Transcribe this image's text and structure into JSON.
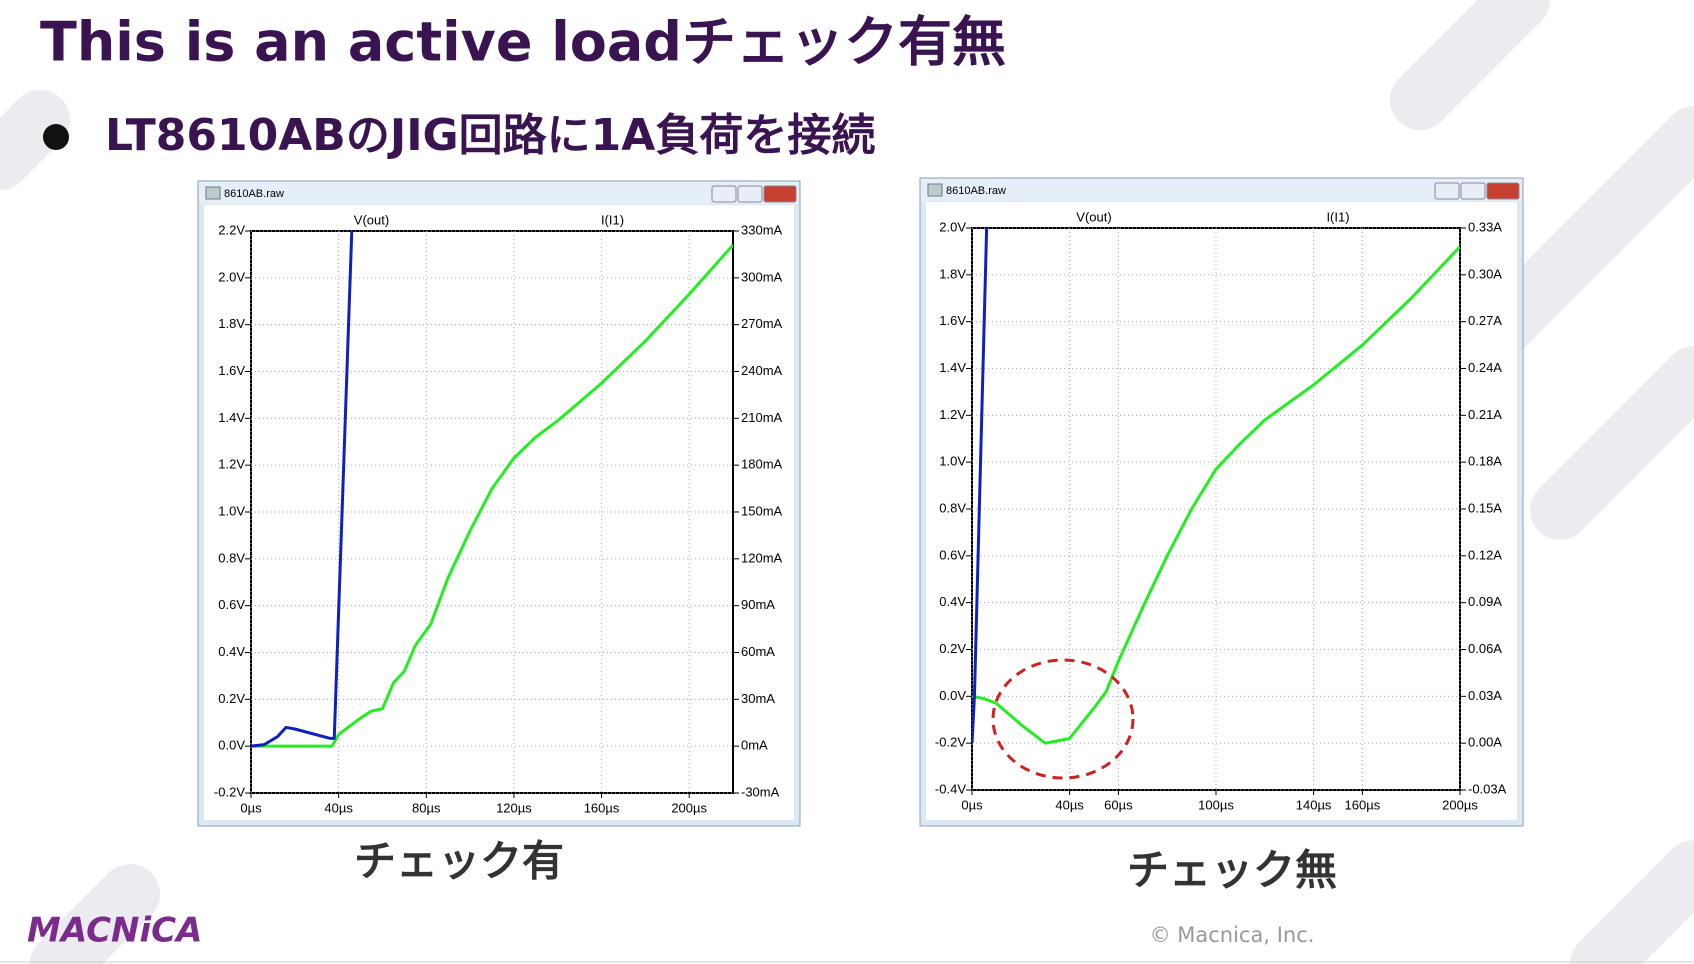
{
  "slide": {
    "title": "This is an active loadチェック有無",
    "bullet": "LT8610ABのJIG回路に1A負荷を接続",
    "logo": "MACNiCA",
    "copyright": "© Macnica, Inc."
  },
  "chart_data": [
    {
      "type": "line",
      "window_title": "8610AB.raw",
      "caption": "チェック有",
      "xlim": [
        0,
        220
      ],
      "ylim": [
        -0.2,
        2.2
      ],
      "y2lim": [
        -30,
        330
      ],
      "xticks": [
        {
          "value": 0,
          "label": "0µs"
        },
        {
          "value": 40,
          "label": "40µs"
        },
        {
          "value": 80,
          "label": "80µs"
        },
        {
          "value": 120,
          "label": "120µs"
        },
        {
          "value": 160,
          "label": "160µs"
        },
        {
          "value": 200,
          "label": "200µs"
        }
      ],
      "yticks": [
        {
          "value": -0.2,
          "label": "-0.2V"
        },
        {
          "value": 0,
          "label": "0.0V"
        },
        {
          "value": 0.2,
          "label": "0.2V"
        },
        {
          "value": 0.4,
          "label": "0.4V"
        },
        {
          "value": 0.6,
          "label": "0.6V"
        },
        {
          "value": 0.8,
          "label": "0.8V"
        },
        {
          "value": 1.0,
          "label": "1.0V"
        },
        {
          "value": 1.2,
          "label": "1.2V"
        },
        {
          "value": 1.4,
          "label": "1.4V"
        },
        {
          "value": 1.6,
          "label": "1.6V"
        },
        {
          "value": 1.8,
          "label": "1.8V"
        },
        {
          "value": 2.0,
          "label": "2.0V"
        },
        {
          "value": 2.2,
          "label": "2.2V"
        }
      ],
      "y2ticks": [
        {
          "value": -30,
          "label": "-30mA"
        },
        {
          "value": 0,
          "label": "0mA"
        },
        {
          "value": 30,
          "label": "30mA"
        },
        {
          "value": 60,
          "label": "60mA"
        },
        {
          "value": 90,
          "label": "90mA"
        },
        {
          "value": 120,
          "label": "120mA"
        },
        {
          "value": 150,
          "label": "150mA"
        },
        {
          "value": 180,
          "label": "180mA"
        },
        {
          "value": 210,
          "label": "210mA"
        },
        {
          "value": 240,
          "label": "240mA"
        },
        {
          "value": 270,
          "label": "270mA"
        },
        {
          "value": 300,
          "label": "300mA"
        },
        {
          "value": 330,
          "label": "330mA"
        }
      ],
      "grid": true,
      "series": [
        {
          "name": "V(out)",
          "color": "#22ee22",
          "x": [
            0,
            37,
            40,
            50,
            55,
            60,
            65,
            70,
            75,
            82,
            90,
            100,
            110,
            120,
            130,
            140,
            160,
            180,
            200,
            220
          ],
          "values": [
            0,
            0,
            0.05,
            0.12,
            0.15,
            0.16,
            0.27,
            0.32,
            0.43,
            0.52,
            0.72,
            0.92,
            1.1,
            1.23,
            1.32,
            1.39,
            1.55,
            1.73,
            1.93,
            2.14
          ]
        },
        {
          "name": "I(I1)",
          "color": "#1020c0",
          "axis": "y2",
          "x": [
            0,
            6,
            12,
            16,
            20,
            36,
            38,
            46
          ],
          "values": [
            0,
            1,
            6,
            12,
            11,
            5,
            5,
            330
          ]
        }
      ]
    },
    {
      "type": "line",
      "window_title": "8610AB.raw",
      "caption": "チェック無",
      "xlim": [
        0,
        200
      ],
      "ylim": [
        -0.4,
        2.0
      ],
      "y2lim": [
        -0.03,
        0.33
      ],
      "xticks": [
        {
          "value": 0,
          "label": "0µs"
        },
        {
          "value": 40,
          "label": "40µs"
        },
        {
          "value": 60,
          "label": "60µs"
        },
        {
          "value": 100,
          "label": "100µs"
        },
        {
          "value": 140,
          "label": "140µs"
        },
        {
          "value": 160,
          "label": "160µs"
        },
        {
          "value": 200,
          "label": "200µs"
        }
      ],
      "yticks": [
        {
          "value": -0.4,
          "label": "-0.4V"
        },
        {
          "value": -0.2,
          "label": "-0.2V"
        },
        {
          "value": 0,
          "label": "0.0V"
        },
        {
          "value": 0.2,
          "label": "0.2V"
        },
        {
          "value": 0.4,
          "label": "0.4V"
        },
        {
          "value": 0.6,
          "label": "0.6V"
        },
        {
          "value": 0.8,
          "label": "0.8V"
        },
        {
          "value": 1.0,
          "label": "1.0V"
        },
        {
          "value": 1.2,
          "label": "1.2V"
        },
        {
          "value": 1.4,
          "label": "1.4V"
        },
        {
          "value": 1.6,
          "label": "1.6V"
        },
        {
          "value": 1.8,
          "label": "1.8V"
        },
        {
          "value": 2.0,
          "label": "2.0V"
        }
      ],
      "y2ticks": [
        {
          "value": -0.03,
          "label": "-0.03A"
        },
        {
          "value": 0,
          "label": "0.00A"
        },
        {
          "value": 0.03,
          "label": "0.03A"
        },
        {
          "value": 0.06,
          "label": "0.06A"
        },
        {
          "value": 0.09,
          "label": "0.09A"
        },
        {
          "value": 0.12,
          "label": "0.12A"
        },
        {
          "value": 0.15,
          "label": "0.15A"
        },
        {
          "value": 0.18,
          "label": "0.18A"
        },
        {
          "value": 0.21,
          "label": "0.21A"
        },
        {
          "value": 0.24,
          "label": "0.24A"
        },
        {
          "value": 0.27,
          "label": "0.27A"
        },
        {
          "value": 0.3,
          "label": "0.30A"
        },
        {
          "value": 0.33,
          "label": "0.33A"
        }
      ],
      "grid": true,
      "series": [
        {
          "name": "V(out)",
          "color": "#22ee22",
          "x": [
            0,
            5,
            10,
            20,
            30,
            40,
            50,
            55,
            60,
            70,
            80,
            90,
            100,
            110,
            120,
            140,
            160,
            180,
            200
          ],
          "values": [
            0,
            -0.01,
            -0.03,
            -0.12,
            -0.2,
            -0.18,
            -0.05,
            0.02,
            0.15,
            0.38,
            0.6,
            0.8,
            0.97,
            1.08,
            1.18,
            1.33,
            1.5,
            1.7,
            1.92
          ]
        },
        {
          "name": "I(I1)",
          "color": "#1020c0",
          "axis": "y2",
          "x": [
            0,
            1,
            6
          ],
          "values": [
            0,
            0.03,
            0.33
          ]
        }
      ]
    }
  ]
}
